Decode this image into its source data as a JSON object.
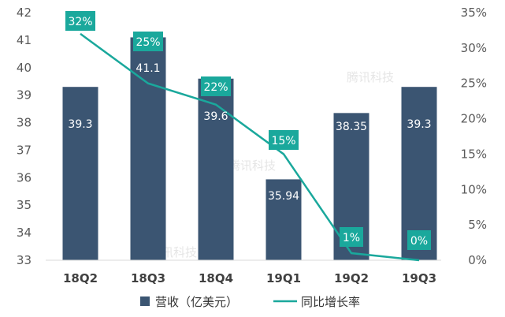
{
  "chart_data": {
    "type": "bar",
    "categories": [
      "18Q2",
      "18Q3",
      "18Q4",
      "19Q1",
      "19Q2",
      "19Q3"
    ],
    "series": [
      {
        "name": "营收（亿美元）",
        "type": "bar",
        "axis": "left",
        "values": [
          39.3,
          41.1,
          39.6,
          35.94,
          38.35,
          39.3
        ],
        "labels": [
          "39.3",
          "41.1",
          "39.6",
          "35.94",
          "38.35",
          "39.3"
        ]
      },
      {
        "name": "同比增长率",
        "type": "line",
        "axis": "right",
        "values": [
          32,
          25,
          22,
          15,
          1,
          0
        ],
        "labels": [
          "32%",
          "25%",
          "22%",
          "15%",
          "1%",
          "0%"
        ]
      }
    ],
    "y_left": {
      "min": 33,
      "max": 42,
      "ticks": [
        "33",
        "34",
        "35",
        "36",
        "37",
        "38",
        "39",
        "40",
        "41",
        "42"
      ]
    },
    "y_right": {
      "min": 0,
      "max": 35,
      "ticks": [
        "0%",
        "5%",
        "10%",
        "15%",
        "20%",
        "25%",
        "30%",
        "35%"
      ]
    },
    "grid": false,
    "legend": "bottom",
    "colors": {
      "bar": "#3b5572",
      "line": "#1aa89c",
      "label_box": "#1aa89c"
    },
    "watermark": "腾讯科技"
  }
}
